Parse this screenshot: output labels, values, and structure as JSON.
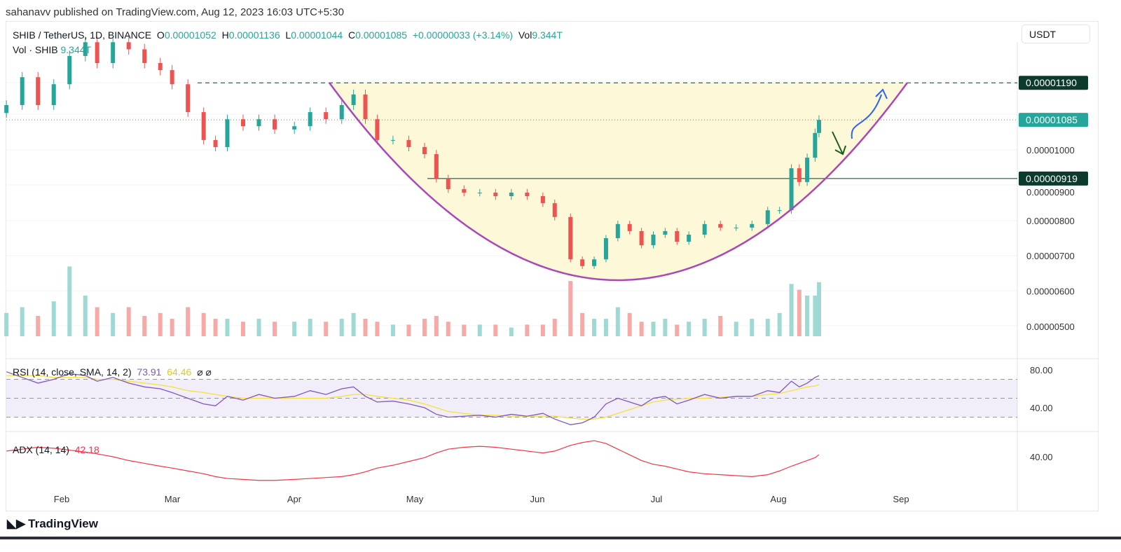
{
  "published": "sahanavv published on TradingView.com, Aug 12, 2023 16:03 UTC+5:30",
  "legend": {
    "symbol": "SHIB / TetherUS, 1D, BINANCE",
    "o_label": "O",
    "o": "0.00001052",
    "h_label": "H",
    "h": "0.00001136",
    "l_label": "L",
    "l": "0.00001044",
    "c_label": "C",
    "c": "0.00001085",
    "change": "+0.00000033 (+3.14%)",
    "vol_label": "Vol",
    "vol": "9.344T"
  },
  "volume_legend": {
    "label": "Vol · SHIB",
    "value": "9.344T"
  },
  "currency_button": "USDT",
  "rsi_legend": {
    "label": "RSI (14, close, SMA, 14, 2)",
    "rsi": "73.91",
    "sma": "64.46",
    "icons": "⌀ ⌀"
  },
  "adx_legend": {
    "label": "ADX (14, 14)",
    "value": "42.18"
  },
  "logo": "TradingView",
  "colors": {
    "up": "#26a69a",
    "down": "#ef5350",
    "rsi": "#7e57c2",
    "sma": "#f5e13b",
    "adx": "#f23645",
    "cup": "#ab47bc",
    "cup_fill": "#fdf8d8",
    "level": "#0c3b2e"
  },
  "chart_data": {
    "type": "candlestick",
    "price_axis": {
      "ticks": [
        "0.00001000",
        "0.00000900",
        "0.00000800",
        "0.00000700",
        "0.00000600",
        "0.00000500"
      ],
      "labels": {
        "resistance": "0.00001190",
        "last": "0.00001085",
        "support": "0.00000919"
      }
    },
    "time_axis": [
      "Feb",
      "Mar",
      "Apr",
      "May",
      "Jun",
      "Jul",
      "Aug",
      "Sep"
    ],
    "rsi_axis": [
      "80.00",
      "40.00"
    ],
    "adx_axis": [
      "40.00"
    ],
    "dates": [
      "2023-01-18",
      "2023-01-22",
      "2023-01-26",
      "2023-01-30",
      "2023-02-03",
      "2023-02-07",
      "2023-02-10",
      "2023-02-14",
      "2023-02-18",
      "2023-02-22",
      "2023-02-26",
      "2023-03-01",
      "2023-03-05",
      "2023-03-09",
      "2023-03-12",
      "2023-03-15",
      "2023-03-19",
      "2023-03-23",
      "2023-03-27",
      "2023-04-01",
      "2023-04-05",
      "2023-04-09",
      "2023-04-13",
      "2023-04-16",
      "2023-04-19",
      "2023-04-22",
      "2023-04-26",
      "2023-04-30",
      "2023-05-04",
      "2023-05-07",
      "2023-05-10",
      "2023-05-14",
      "2023-05-18",
      "2023-05-22",
      "2023-05-26",
      "2023-05-30",
      "2023-06-03",
      "2023-06-06",
      "2023-06-10",
      "2023-06-13",
      "2023-06-16",
      "2023-06-19",
      "2023-06-22",
      "2023-06-25",
      "2023-06-28",
      "2023-07-01",
      "2023-07-04",
      "2023-07-07",
      "2023-07-10",
      "2023-07-14",
      "2023-07-18",
      "2023-07-22",
      "2023-07-26",
      "2023-07-30",
      "2023-08-02",
      "2023-08-05",
      "2023-08-07",
      "2023-08-09",
      "2023-08-11",
      "2023-08-12"
    ],
    "close": [
      1.127e-05,
      1.206e-05,
      1.127e-05,
      1.186e-05,
      1.266e-05,
      1.305e-05,
      1.246e-05,
      1.305e-05,
      1.285e-05,
      1.246e-05,
      1.226e-05,
      1.186e-05,
      1.107e-05,
      1.028e-05,
      1.008e-05,
      1.087e-05,
      1.067e-05,
      1.087e-05,
      1.058e-05,
      1.067e-05,
      1.107e-05,
      1.087e-05,
      1.127e-05,
      1.157e-05,
      1.087e-05,
      1.028e-05,
      1.028e-05,
      1.008e-05,
      9.88e-06,
      9.19e-06,
      8.89e-06,
      8.79e-06,
      8.79e-06,
      8.69e-06,
      8.79e-06,
      8.69e-06,
      8.49e-06,
      8.1e-06,
      6.9e-06,
      6.71e-06,
      6.9e-06,
      7.5e-06,
      7.9e-06,
      7.7e-06,
      7.3e-06,
      7.6e-06,
      7.7e-06,
      7.4e-06,
      7.6e-06,
      7.9e-06,
      7.8e-06,
      7.8e-06,
      7.9e-06,
      8.29e-06,
      8.29e-06,
      9.48e-06,
      9.09e-06,
      9.78e-06,
      1.048e-05,
      1.085e-05
    ],
    "volume_T": [
      4,
      5,
      3.5,
      6,
      12,
      7,
      5,
      4,
      5,
      3.5,
      4,
      3,
      5,
      4,
      3,
      3,
      2.5,
      3,
      2.5,
      2.5,
      3,
      2.5,
      3,
      4,
      3,
      2.5,
      2,
      2,
      3,
      3.5,
      2.5,
      2,
      2,
      2,
      1.5,
      2,
      2,
      3,
      9.5,
      4,
      3,
      3,
      5,
      4,
      2.5,
      2.5,
      3,
      2,
      2.5,
      3,
      3.5,
      2.5,
      3,
      3,
      4,
      9,
      8,
      7,
      7,
      9.3
    ],
    "rsi": [
      78,
      72,
      66,
      70,
      76,
      74,
      68,
      72,
      66,
      62,
      60,
      56,
      50,
      44,
      42,
      52,
      48,
      54,
      50,
      52,
      58,
      54,
      60,
      62,
      52,
      46,
      47,
      44,
      40,
      33,
      30,
      31,
      32,
      30,
      33,
      31,
      34,
      28,
      22,
      24,
      30,
      44,
      50,
      46,
      42,
      50,
      52,
      44,
      48,
      54,
      50,
      52,
      52,
      58,
      56,
      68,
      62,
      66,
      72,
      73.91
    ],
    "rsi_sma": [
      74,
      74,
      74,
      72,
      72,
      72,
      70,
      70,
      68,
      66,
      64,
      62,
      58,
      56,
      54,
      52,
      50,
      50,
      50,
      50,
      50,
      50,
      52,
      54,
      54,
      52,
      50,
      48,
      44,
      40,
      36,
      34,
      32,
      32,
      31,
      31,
      31,
      31,
      29,
      28,
      28,
      30,
      34,
      38,
      42,
      46,
      48,
      49,
      50,
      50,
      51,
      52,
      52,
      54,
      55,
      58,
      60,
      62,
      63,
      64.46
    ],
    "adx": [
      46,
      48,
      50,
      49,
      47,
      45,
      43,
      40,
      36,
      33,
      30,
      28,
      25,
      22,
      19,
      17,
      16,
      15,
      15,
      16,
      17,
      18,
      19,
      21,
      24,
      28,
      31,
      35,
      39,
      44,
      48,
      50,
      51,
      50,
      48,
      46,
      44,
      46,
      52,
      55,
      57,
      54,
      48,
      42,
      36,
      32,
      30,
      27,
      24,
      22,
      21,
      20,
      19,
      21,
      25,
      30,
      33,
      36,
      39,
      42.18
    ],
    "drawings": [
      "cup curve",
      "resistance 0.00001190",
      "support 0.00000919",
      "down arrow",
      "up arrow"
    ]
  }
}
